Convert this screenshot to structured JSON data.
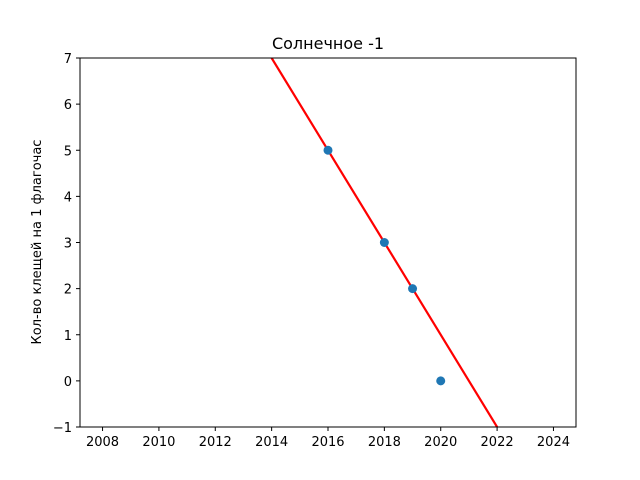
{
  "chart_data": {
    "type": "scatter",
    "title": "Солнечное -1",
    "xlabel": "",
    "ylabel": "Кол-во клещей на 1 флагочас",
    "xlim": [
      2007.2,
      2024.8
    ],
    "ylim": [
      -1,
      7
    ],
    "x_ticks": [
      "2008",
      "2010",
      "2012",
      "2014",
      "2016",
      "2018",
      "2020",
      "2022",
      "2024"
    ],
    "y_ticks": [
      "−1",
      "0",
      "1",
      "2",
      "3",
      "4",
      "5",
      "6",
      "7"
    ],
    "grid": false,
    "points": [
      {
        "x": 2016,
        "y": 5
      },
      {
        "x": 2018,
        "y": 3
      },
      {
        "x": 2019,
        "y": 2
      },
      {
        "x": 2020,
        "y": 0
      }
    ],
    "trend_line": {
      "x": [
        2014,
        2022
      ],
      "y": [
        7,
        -1
      ]
    },
    "colors": {
      "points": "#1f77b4",
      "trend_line": "#ff0000"
    }
  }
}
